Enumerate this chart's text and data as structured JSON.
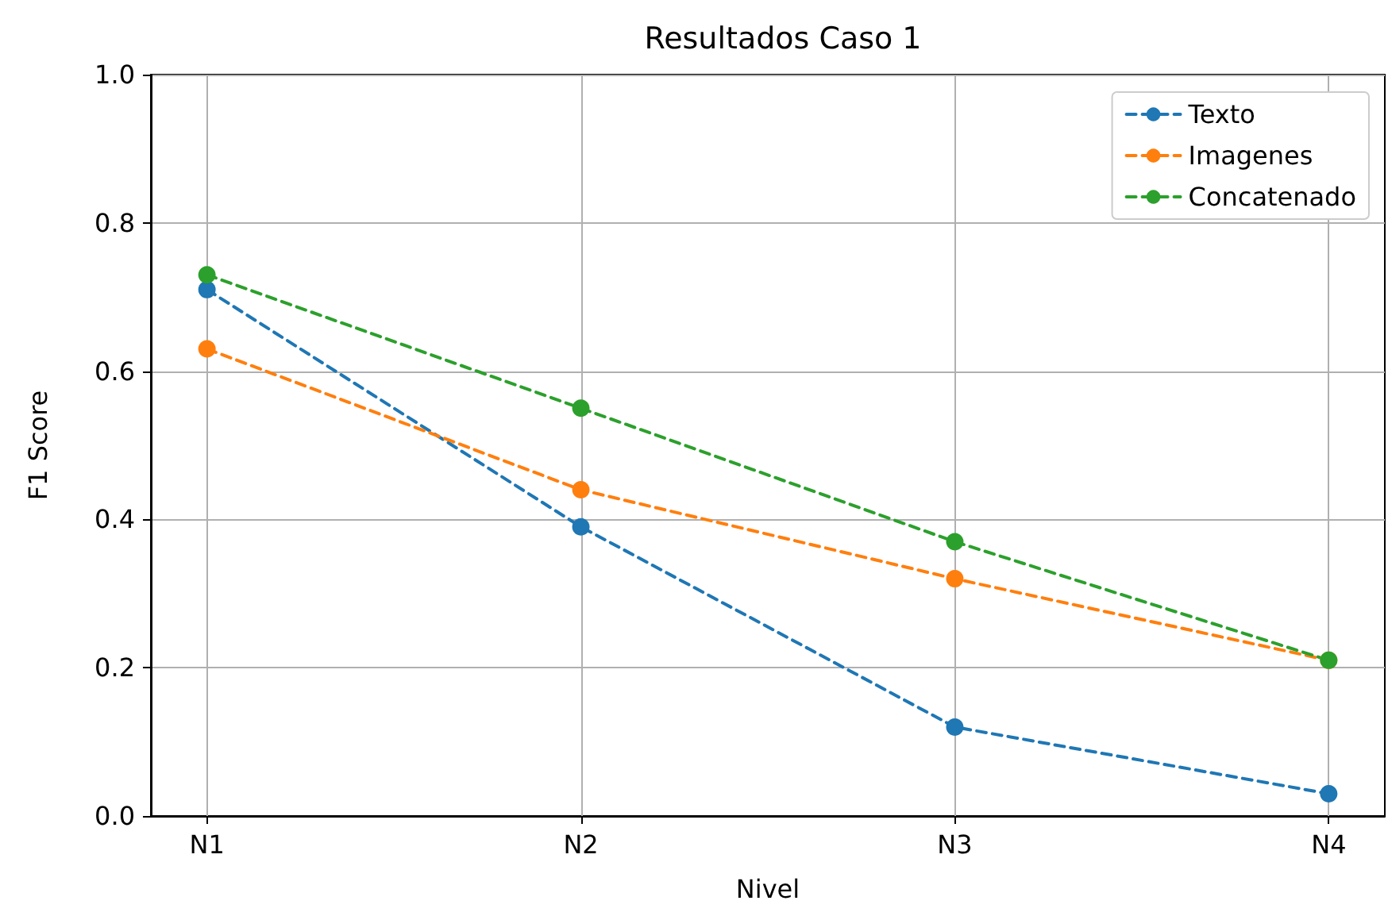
{
  "chart_data": {
    "type": "line",
    "title": "Resultados Caso 1",
    "xlabel": "Nivel",
    "ylabel": "F1 Score",
    "categories": [
      "N1",
      "N2",
      "N3",
      "N4"
    ],
    "series": [
      {
        "name": "Texto",
        "color": "#1f77b4",
        "values": [
          0.71,
          0.39,
          0.12,
          0.03
        ]
      },
      {
        "name": "Imagenes",
        "color": "#ff7f0e",
        "values": [
          0.63,
          0.44,
          0.32,
          0.21
        ]
      },
      {
        "name": "Concatenado",
        "color": "#2ca02c",
        "values": [
          0.73,
          0.55,
          0.37,
          0.21
        ]
      }
    ],
    "ylim": [
      0,
      1
    ],
    "yticks": [
      {
        "value": 0,
        "label": "0.0"
      },
      0.2,
      0.4,
      0.6,
      0.8,
      {
        "value": 1,
        "label": "1.0"
      }
    ],
    "grid": true,
    "legend": "top right",
    "marker": "circle",
    "line_style": "dashed"
  }
}
